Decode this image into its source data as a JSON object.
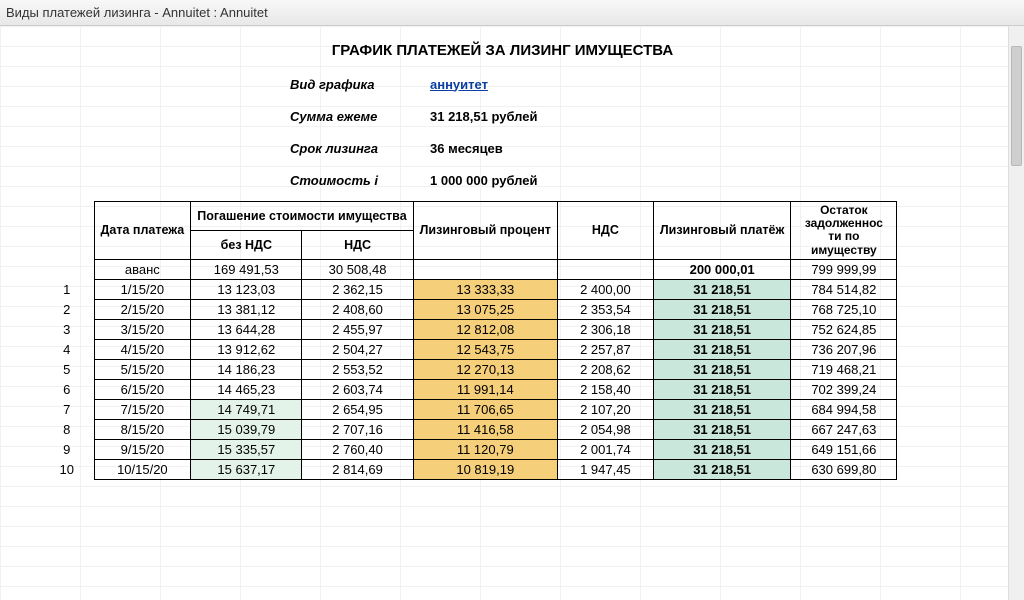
{
  "window": {
    "title": "Виды платежей лизинга - Annuitet : Annuitet"
  },
  "doc": {
    "title": "ГРАФИК ПЛАТЕЖЕЙ ЗА ЛИЗИНГ ИМУЩЕСТВА",
    "meta": {
      "schedule_label": "Вид графика",
      "schedule_value": "аннуитет",
      "monthly_label": "Сумма ежеме",
      "monthly_value": "31 218,51 рублей",
      "term_label": "Срок лизинга",
      "term_value": "36 месяцев",
      "cost_label": "Стоимость і",
      "cost_value": "1 000 000 рублей"
    },
    "columns": {
      "date": "Дата платежа",
      "repay": "Погашение стоимости имущества",
      "noVat": "без НДС",
      "vat": "НДС",
      "pct": "Лизинговый процент",
      "nds": "НДС",
      "pay": "Лизинговый платёж",
      "rem": "Остаток задолженнос ти по имуществу"
    },
    "advance": {
      "label": "аванс",
      "noVat": "169 491,53",
      "vat": "30 508,48",
      "pay": "200 000,01",
      "rem": "799 999,99"
    },
    "rows": [
      {
        "i": "1",
        "date": "1/15/20",
        "noVat": "13 123,03",
        "vat": "2 362,15",
        "pct": "13 333,33",
        "nds": "2 400,00",
        "pay": "31 218,51",
        "rem": "784 514,82",
        "hl": "none"
      },
      {
        "i": "2",
        "date": "2/15/20",
        "noVat": "13 381,12",
        "vat": "2 408,60",
        "pct": "13 075,25",
        "nds": "2 353,54",
        "pay": "31 218,51",
        "rem": "768 725,10",
        "hl": "none"
      },
      {
        "i": "3",
        "date": "3/15/20",
        "noVat": "13 644,28",
        "vat": "2 455,97",
        "pct": "12 812,08",
        "nds": "2 306,18",
        "pay": "31 218,51",
        "rem": "752 624,85",
        "hl": "none"
      },
      {
        "i": "4",
        "date": "4/15/20",
        "noVat": "13 912,62",
        "vat": "2 504,27",
        "pct": "12 543,75",
        "nds": "2 257,87",
        "pay": "31 218,51",
        "rem": "736 207,96",
        "hl": "none"
      },
      {
        "i": "5",
        "date": "5/15/20",
        "noVat": "14 186,23",
        "vat": "2 553,52",
        "pct": "12 270,13",
        "nds": "2 208,62",
        "pay": "31 218,51",
        "rem": "719 468,21",
        "hl": "none"
      },
      {
        "i": "6",
        "date": "6/15/20",
        "noVat": "14 465,23",
        "vat": "2 603,74",
        "pct": "11 991,14",
        "nds": "2 158,40",
        "pay": "31 218,51",
        "rem": "702 399,24",
        "hl": "none"
      },
      {
        "i": "7",
        "date": "7/15/20",
        "noVat": "14 749,71",
        "vat": "2 654,95",
        "pct": "11 706,65",
        "nds": "2 107,20",
        "pay": "31 218,51",
        "rem": "684 994,58",
        "hl": "pale"
      },
      {
        "i": "8",
        "date": "8/15/20",
        "noVat": "15 039,79",
        "vat": "2 707,16",
        "pct": "11 416,58",
        "nds": "2 054,98",
        "pay": "31 218,51",
        "rem": "667 247,63",
        "hl": "pale"
      },
      {
        "i": "9",
        "date": "9/15/20",
        "noVat": "15 335,57",
        "vat": "2 760,40",
        "pct": "11 120,79",
        "nds": "2 001,74",
        "pay": "31 218,51",
        "rem": "649 151,66",
        "hl": "pale"
      },
      {
        "i": "10",
        "date": "10/15/20",
        "noVat": "15 637,17",
        "vat": "2 814,69",
        "pct": "10 819,19",
        "nds": "1 947,45",
        "pay": "31 218,51",
        "rem": "630 699,80",
        "hl": "pale"
      }
    ],
    "style": {
      "green": "#c9e8db",
      "amber": "#f6cf7a",
      "pale": "#e4f3ea",
      "grid": "#f1f1f1",
      "border": "#000000",
      "font": "Arial",
      "body_pt": 13,
      "title_pt": 15
    }
  }
}
